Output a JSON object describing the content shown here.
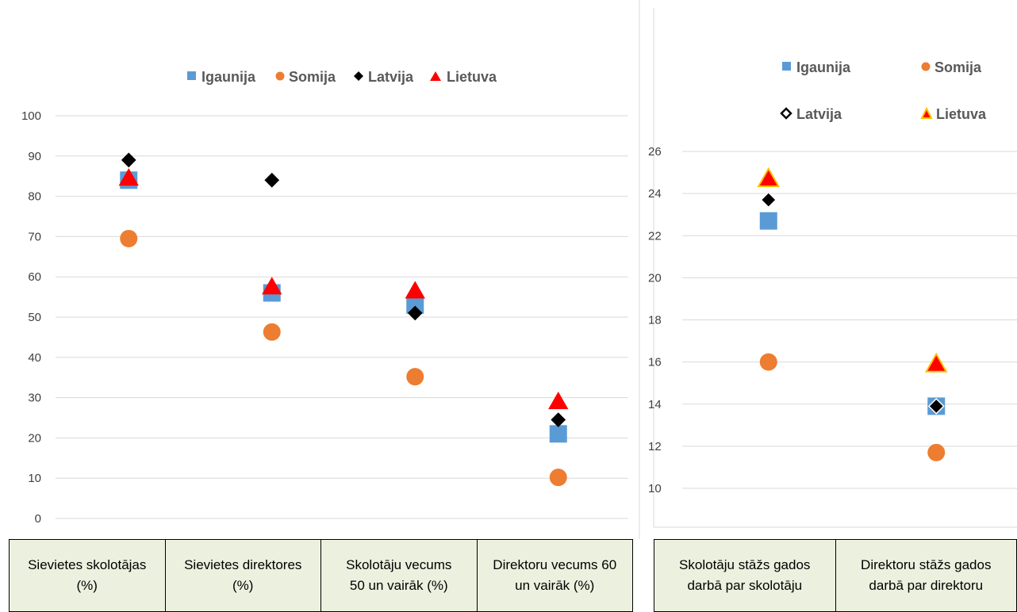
{
  "chart_data": [
    {
      "type": "scatter",
      "legend": [
        "Igaunija",
        "Somija",
        "Latvija",
        "Lietuva"
      ],
      "categories": [
        "Sievietes skolotājas (%)",
        "Sievietes direktores (%)",
        "Skolotāju vecums 50 un vairāk (%)",
        "Direktoru vecums 60 un vairāk (%)"
      ],
      "yticks": [
        "0",
        "10",
        "20",
        "30",
        "40",
        "50",
        "60",
        "70",
        "80",
        "90",
        "100"
      ],
      "ylim": [
        0,
        100
      ],
      "grid": true,
      "legend_position": "top",
      "series": [
        {
          "name": "Igaunija",
          "marker": "square",
          "color": "#5b9bd5",
          "values": [
            84,
            56,
            53,
            21
          ]
        },
        {
          "name": "Somija",
          "marker": "circle",
          "color": "#ed7d31",
          "values": [
            69.5,
            46.3,
            35.2,
            10.2
          ]
        },
        {
          "name": "Latvija",
          "marker": "diamond",
          "color": "#000000",
          "values": [
            89,
            84,
            51,
            24.5
          ]
        },
        {
          "name": "Lietuva",
          "marker": "triangle",
          "color": "#ff0000",
          "values": [
            84.5,
            57.5,
            56.5,
            29
          ]
        }
      ]
    },
    {
      "type": "scatter",
      "legend": [
        "Igaunija",
        "Somija",
        "Latvija",
        "Lietuva"
      ],
      "categories": [
        "Skolotāju stāžs gados darbā par skolotāju",
        "Direktoru stāžs gados darbā par direktoru"
      ],
      "yticks": [
        "10",
        "12",
        "14",
        "16",
        "18",
        "20",
        "22",
        "24",
        "26"
      ],
      "ylim": [
        10,
        26
      ],
      "grid": true,
      "legend_position": "top",
      "series": [
        {
          "name": "Igaunija",
          "marker": "square",
          "color": "#5b9bd5",
          "values": [
            22.7,
            13.9
          ]
        },
        {
          "name": "Somija",
          "marker": "circle",
          "color": "#ed7d31",
          "values": [
            16,
            11.7
          ]
        },
        {
          "name": "Latvija",
          "marker": "diamond",
          "color": "#000000",
          "values": [
            23.7,
            13.9
          ]
        },
        {
          "name": "Lietuva",
          "marker": "triangle",
          "color": "#ff0000",
          "outline": "#ffc000",
          "values": [
            24.7,
            15.9
          ]
        }
      ]
    }
  ],
  "table_left": {
    "cells": [
      [
        "Sievietes skolotājas",
        "(%)"
      ],
      [
        "Sievietes direktores",
        "(%)"
      ],
      [
        "Skolotāju vecums",
        "50 un vairāk (%)"
      ],
      [
        "Direktoru vecums 60",
        "un vairāk (%)"
      ]
    ]
  },
  "table_right": {
    "cells": [
      [
        "Skolotāju stāžs gados",
        "darbā par skolotāju"
      ],
      [
        "Direktoru stāžs gados",
        "darbā par direktoru"
      ]
    ]
  }
}
